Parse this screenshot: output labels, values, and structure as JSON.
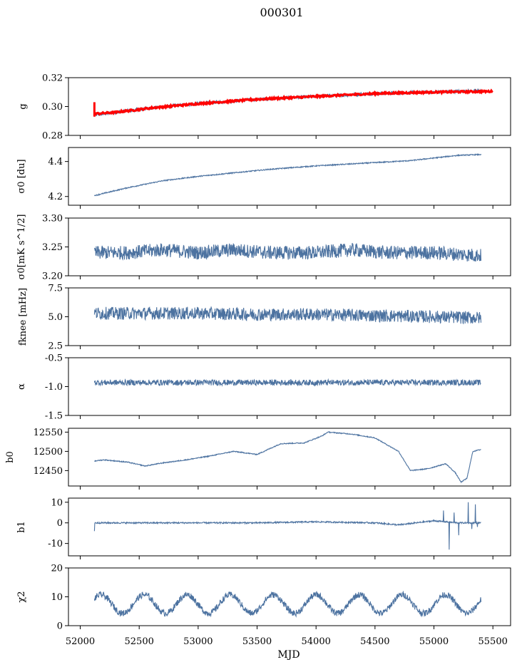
{
  "figure": {
    "title": "000301",
    "xlabel": "MJD",
    "x_ticks": [
      52000,
      52500,
      53000,
      53500,
      54000,
      54500,
      55000,
      55500
    ],
    "xlim": [
      51900,
      55650
    ]
  },
  "colors": {
    "series": "#4c72a0",
    "fit": "#ff0000"
  },
  "chart_data": [
    {
      "type": "line",
      "ylabel": "g",
      "ylim": [
        0.28,
        0.32
      ],
      "y_ticks": [
        "0.28",
        "0.30",
        "0.32"
      ],
      "y_tick_values": [
        0.28,
        0.3,
        0.32
      ],
      "series": [
        {
          "x": [
            52120,
            52300,
            52600,
            53000,
            53500,
            54000,
            54500,
            55000,
            55400
          ],
          "y": [
            0.294,
            0.296,
            0.299,
            0.302,
            0.305,
            0.307,
            0.309,
            0.31,
            0.311
          ],
          "noise": 0.0012,
          "spikes": []
        },
        {
          "x": [
            52120,
            52300,
            52600,
            53000,
            53500,
            54000,
            54500,
            55000,
            55500
          ],
          "y": [
            0.295,
            0.296,
            0.299,
            0.302,
            0.305,
            0.307,
            0.309,
            0.31,
            0.3105
          ],
          "noise": 0.0006,
          "spikes": [],
          "role": "fit"
        }
      ]
    },
    {
      "type": "line",
      "ylabel": "σ0 [du]",
      "ylim": [
        4.15,
        4.48
      ],
      "y_ticks": [
        "4.2",
        "4.4"
      ],
      "y_tick_values": [
        4.2,
        4.4
      ],
      "series": [
        {
          "x": [
            52120,
            52400,
            52700,
            53000,
            53300,
            53600,
            54000,
            54400,
            54800,
            55200,
            55400
          ],
          "y": [
            4.205,
            4.25,
            4.29,
            4.315,
            4.335,
            4.355,
            4.375,
            4.39,
            4.405,
            4.435,
            4.44
          ],
          "noise": 0.003,
          "spikes": []
        }
      ]
    },
    {
      "type": "line",
      "ylabel": "σ0[mK s^1/2]",
      "ylim": [
        3.2,
        3.3
      ],
      "y_ticks": [
        "3.20",
        "3.25",
        "3.30"
      ],
      "y_tick_values": [
        3.2,
        3.25,
        3.3
      ],
      "series": [
        {
          "x": [
            52120,
            52400,
            52700,
            53000,
            53300,
            53600,
            54000,
            54300,
            54600,
            55000,
            55400
          ],
          "y": [
            3.24,
            3.24,
            3.245,
            3.24,
            3.245,
            3.24,
            3.24,
            3.245,
            3.24,
            3.24,
            3.235
          ],
          "noise": 0.012,
          "spikes": []
        }
      ]
    },
    {
      "type": "line",
      "ylabel": "fknee [mHz]",
      "ylim": [
        2.5,
        7.5
      ],
      "y_ticks": [
        "2.5",
        "5.0",
        "7.5"
      ],
      "y_tick_values": [
        2.5,
        5.0,
        7.5
      ],
      "series": [
        {
          "x": [
            52120,
            52500,
            53000,
            53500,
            54000,
            54500,
            55000,
            55400
          ],
          "y": [
            5.3,
            5.3,
            5.3,
            5.2,
            5.2,
            5.1,
            5.0,
            4.9
          ],
          "noise": 0.55,
          "spikes": []
        }
      ]
    },
    {
      "type": "line",
      "ylabel": "α",
      "ylim": [
        -1.5,
        -0.5
      ],
      "y_ticks": [
        "-1.5",
        "-1.0",
        "-0.5"
      ],
      "y_tick_values": [
        -1.5,
        -1.0,
        -0.5
      ],
      "series": [
        {
          "x": [
            52120,
            52500,
            53000,
            53500,
            54000,
            54500,
            55000,
            55400
          ],
          "y": [
            -0.93,
            -0.93,
            -0.93,
            -0.93,
            -0.93,
            -0.93,
            -0.93,
            -0.93
          ],
          "noise": 0.05,
          "spikes": []
        }
      ]
    },
    {
      "type": "line",
      "ylabel": "b0",
      "ylim": [
        12410,
        12560
      ],
      "y_ticks": [
        "12450",
        "12500",
        "12550"
      ],
      "y_tick_values": [
        12450,
        12500,
        12550
      ],
      "series": [
        {
          "x": [
            52120,
            52200,
            52400,
            52550,
            52700,
            52900,
            53100,
            53300,
            53500,
            53700,
            53900,
            54050,
            54100,
            54300,
            54500,
            54700,
            54800,
            54950,
            55100,
            55180,
            55230,
            55280,
            55330,
            55400
          ],
          "y": [
            12475,
            12478,
            12472,
            12462,
            12470,
            12478,
            12488,
            12500,
            12492,
            12520,
            12522,
            12540,
            12550,
            12545,
            12535,
            12500,
            12450,
            12455,
            12468,
            12445,
            12420,
            12430,
            12500,
            12505
          ],
          "noise": 1.2,
          "spikes": []
        }
      ]
    },
    {
      "type": "line",
      "ylabel": "b1",
      "ylim": [
        -16,
        12
      ],
      "y_ticks": [
        "-10",
        "0",
        "10"
      ],
      "y_tick_values": [
        -10,
        0,
        10
      ],
      "series": [
        {
          "x": [
            52120,
            52500,
            53000,
            53500,
            54000,
            54500,
            54700,
            55000,
            55200,
            55400
          ],
          "y": [
            0,
            0,
            0,
            0,
            0.5,
            0,
            -1,
            1,
            0,
            0
          ],
          "noise": 0.35,
          "spikes": [
            [
              52120,
              -4
            ],
            [
              55080,
              6
            ],
            [
              55130,
              -13
            ],
            [
              55170,
              5
            ],
            [
              55210,
              -6
            ],
            [
              55290,
              10
            ],
            [
              55320,
              -3
            ],
            [
              55350,
              9
            ],
            [
              55370,
              -2
            ]
          ]
        }
      ]
    },
    {
      "type": "line",
      "ylabel": "χ2",
      "ylim": [
        0,
        20
      ],
      "y_ticks": [
        "0",
        "10",
        "20"
      ],
      "y_tick_values": [
        0,
        10,
        20
      ],
      "series": [
        {
          "x": [
            52120,
            55400
          ],
          "y": [
            7.5,
            7.5
          ],
          "noise": 1.1,
          "spikes": [],
          "periodic": {
            "amplitude": 3.2,
            "period": 365
          }
        }
      ]
    }
  ]
}
